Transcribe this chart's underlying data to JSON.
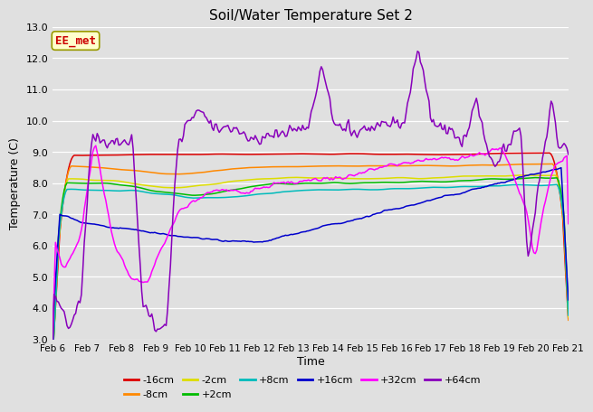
{
  "title": "Soil/Water Temperature Set 2",
  "xlabel": "Time",
  "ylabel": "Temperature (C)",
  "ylim": [
    3.0,
    13.0
  ],
  "yticks": [
    3.0,
    4.0,
    5.0,
    6.0,
    7.0,
    8.0,
    9.0,
    10.0,
    11.0,
    12.0,
    13.0
  ],
  "x_labels": [
    "Feb 6",
    "Feb 7",
    "Feb 8",
    "Feb 9",
    "Feb 10",
    "Feb 11",
    "Feb 12",
    "Feb 13",
    "Feb 14",
    "Feb 15",
    "Feb 16",
    "Feb 17",
    "Feb 18",
    "Feb 19",
    "Feb 20",
    "Feb 21"
  ],
  "n_points": 360,
  "annotation": "EE_met",
  "annotation_color": "#cc0000",
  "annotation_bg": "#ffffcc",
  "annotation_edge": "#999900",
  "bg_color": "#e0e0e0",
  "plot_bg": "#e0e0e0",
  "grid_color": "#ffffff",
  "series": [
    {
      "label": "-16cm",
      "color": "#dd0000"
    },
    {
      "label": "-8cm",
      "color": "#ff8800"
    },
    {
      "label": "-2cm",
      "color": "#dddd00"
    },
    {
      "label": "+2cm",
      "color": "#00bb00"
    },
    {
      "label": "+8cm",
      "color": "#00bbbb"
    },
    {
      "label": "+16cm",
      "color": "#0000cc"
    },
    {
      "label": "+32cm",
      "color": "#ff00ff"
    },
    {
      "label": "+64cm",
      "color": "#8800bb"
    }
  ]
}
